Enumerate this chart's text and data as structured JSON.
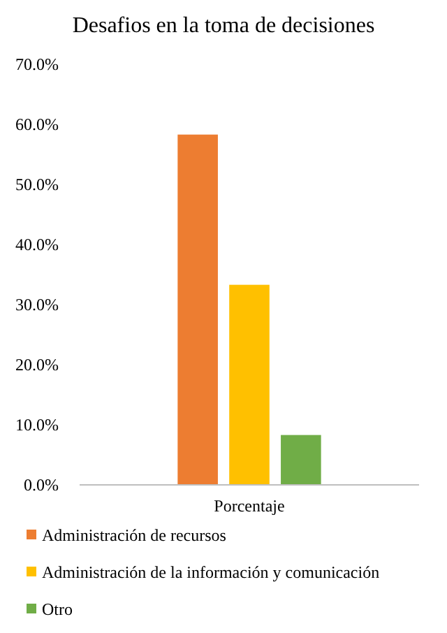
{
  "chart_data": {
    "type": "bar",
    "title": "Desafios en la toma de decisiones",
    "categories": [
      "Porcentaje"
    ],
    "series": [
      {
        "name": "Administración de recursos",
        "color": "#ed7d31",
        "values": [
          58.3
        ]
      },
      {
        "name": "Administración de la información y comunicación",
        "color": "#ffc000",
        "values": [
          33.3
        ]
      },
      {
        "name": "Otro",
        "color": "#70ad47",
        "values": [
          8.3
        ]
      }
    ],
    "ylim": [
      0,
      70
    ],
    "yticks": [
      {
        "value": 0,
        "label": "0.0%"
      },
      {
        "value": 10,
        "label": "10.0%"
      },
      {
        "value": 20,
        "label": "20.0%"
      },
      {
        "value": 30,
        "label": "30.0%"
      },
      {
        "value": 40,
        "label": "40.0%"
      },
      {
        "value": 50,
        "label": "50.0%"
      },
      {
        "value": 60,
        "label": "60.0%"
      },
      {
        "value": 70,
        "label": "70.0%"
      }
    ],
    "grid": false,
    "legend": "bottom"
  }
}
